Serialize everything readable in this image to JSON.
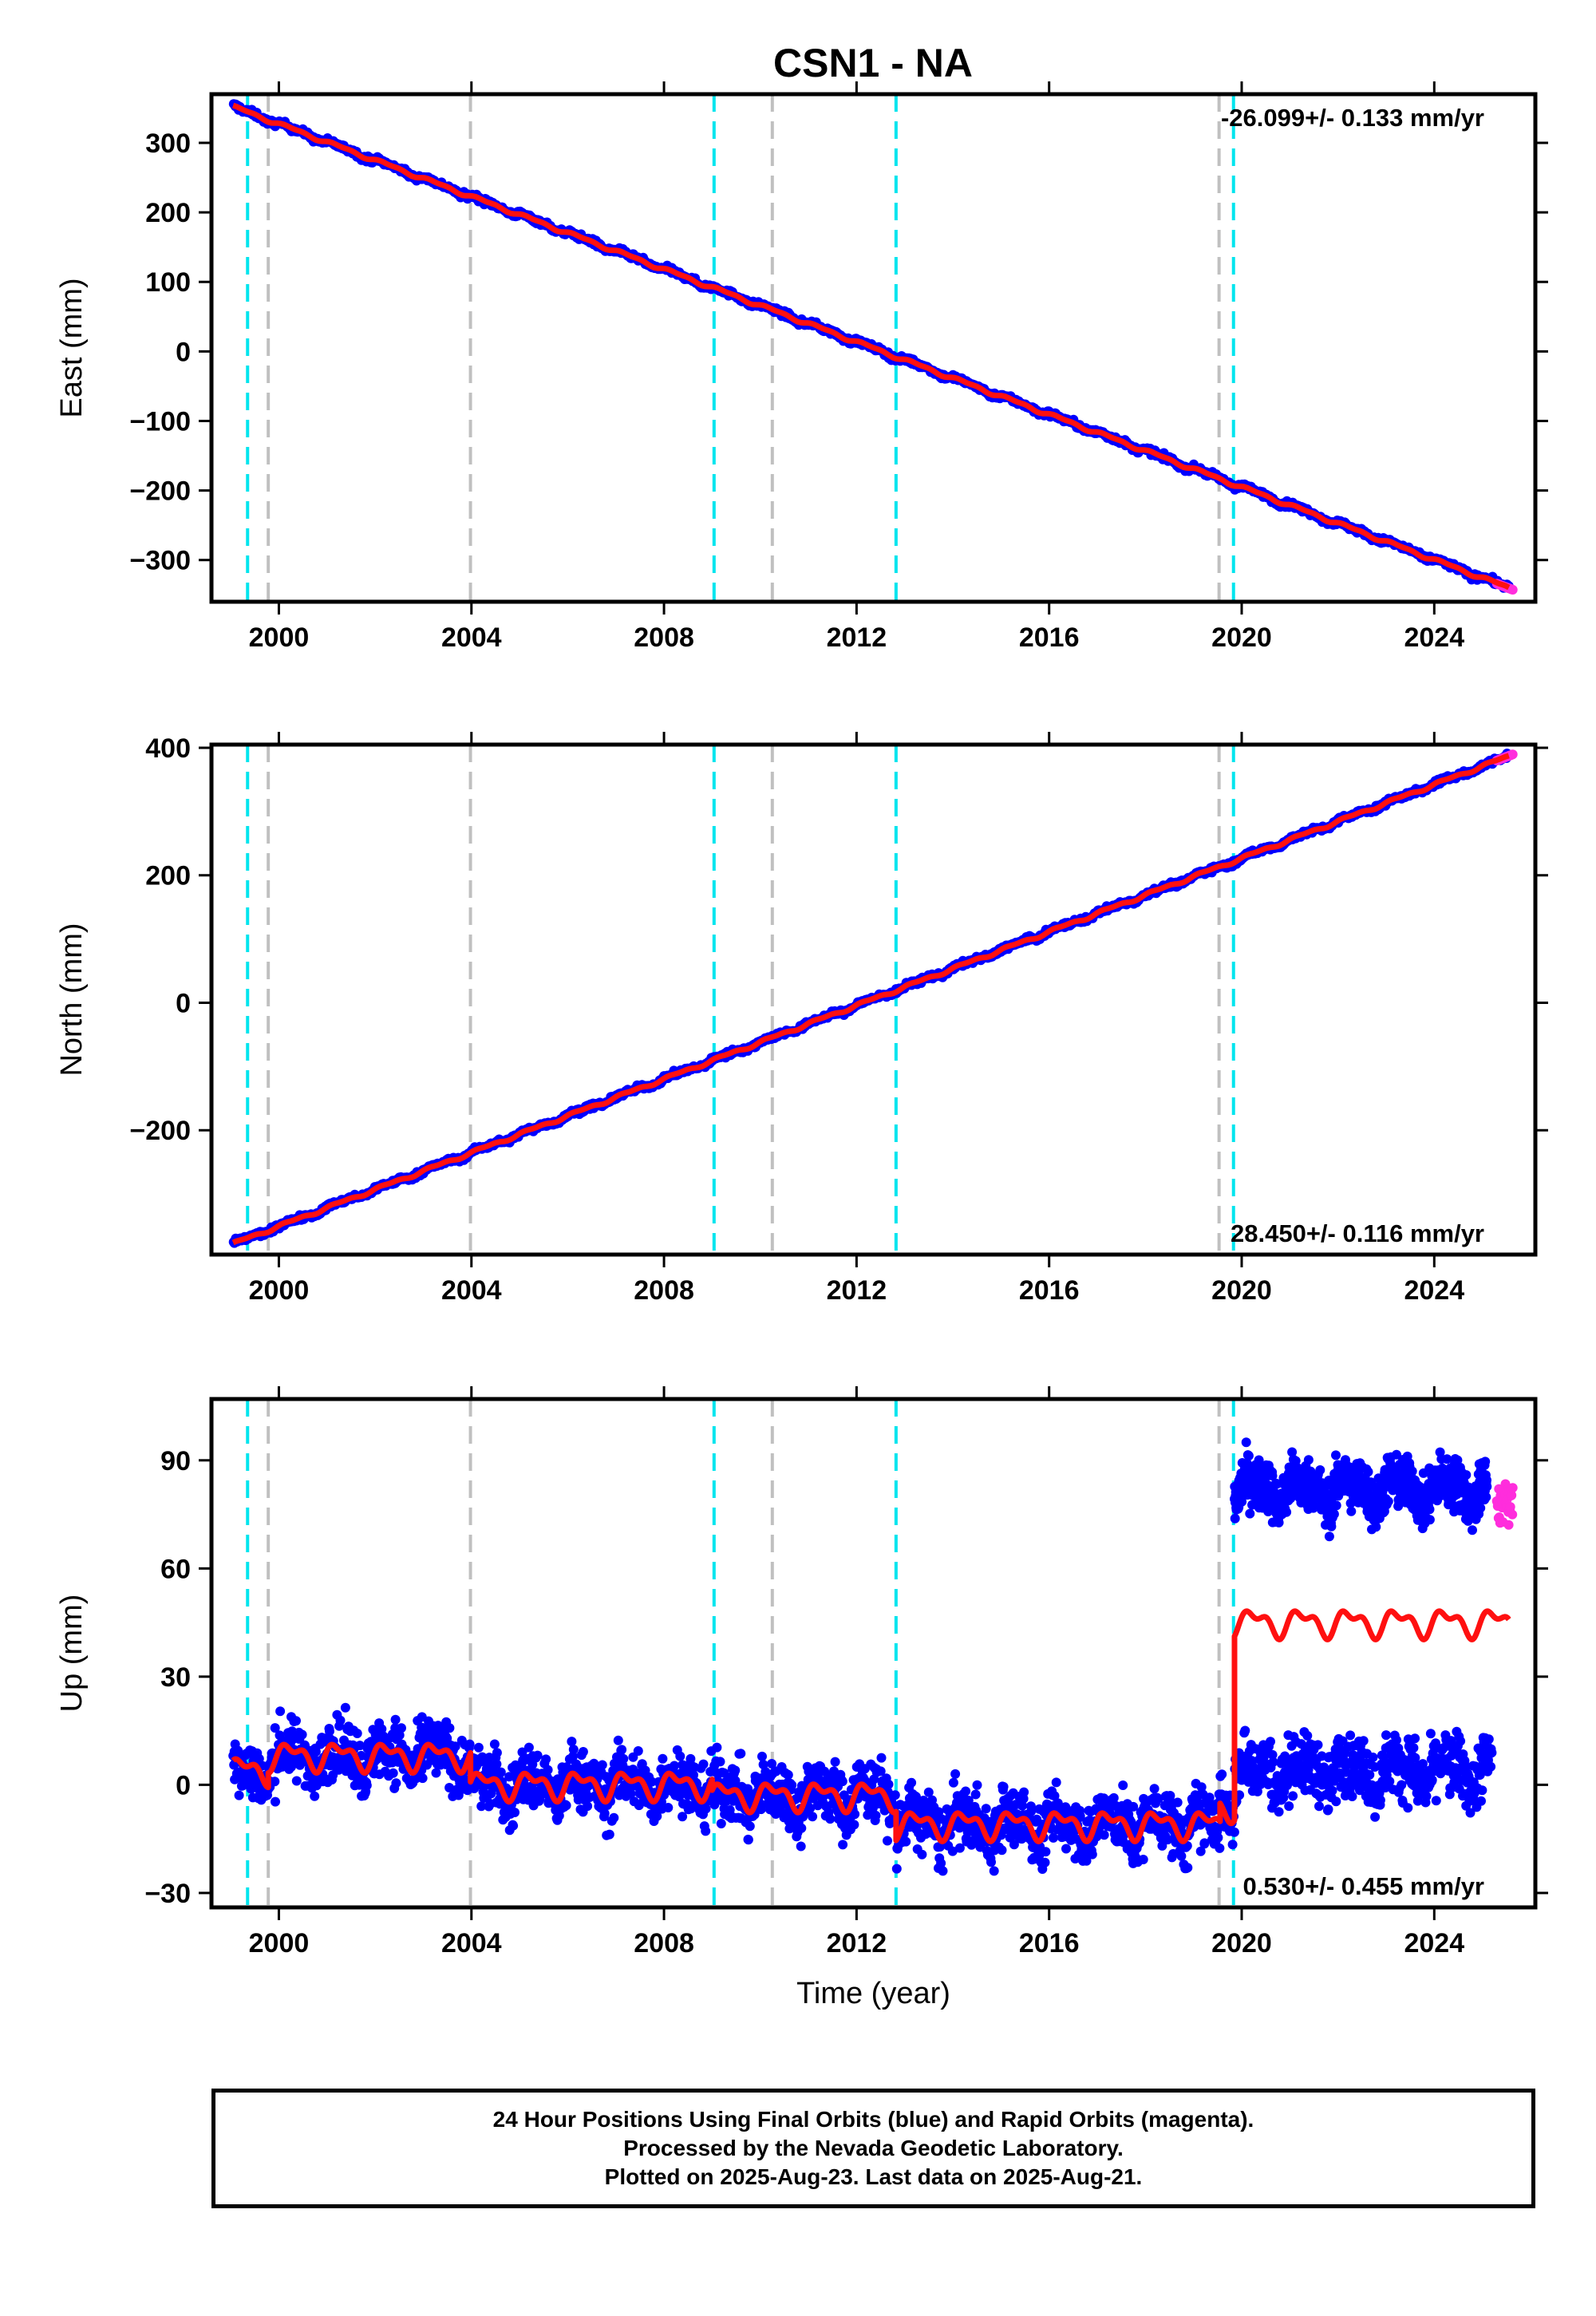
{
  "title": "CSN1 - NA",
  "colors": {
    "final_points": "#0000ff",
    "rapid_points": "#ff2ddc",
    "model": "#ff1010",
    "equipment_line": "#00e5ee",
    "event_line": "#c0c0c0"
  },
  "chart_data": [
    {
      "type": "scatter",
      "component": "East",
      "ylabel": "East (mm)",
      "ylim": [
        -360,
        370
      ],
      "yticks": [
        300,
        200,
        100,
        0,
        -100,
        -200,
        -300
      ],
      "xlim": [
        1998.6,
        2026.1
      ],
      "xticks": [
        2000,
        2004,
        2008,
        2012,
        2016,
        2020,
        2024
      ],
      "rate_label": "-26.099+/- 0.133 mm/yr",
      "rate_label_position": "top-right",
      "series": [
        {
          "kind": "final",
          "trend_points": [
            [
              1999.05,
              352
            ],
            [
              2025.55,
              -340
            ]
          ],
          "scatter_sd": 3
        },
        {
          "kind": "rapid",
          "x_range": [
            2025.3,
            2025.64
          ],
          "trend_points": [
            [
              2025.3,
              -334
            ],
            [
              2025.64,
              -343
            ]
          ]
        },
        {
          "kind": "model",
          "trend_points": [
            [
              1999.05,
              352
            ],
            [
              2025.55,
              -340
            ]
          ]
        }
      ]
    },
    {
      "type": "scatter",
      "component": "North",
      "ylabel": "North (mm)",
      "ylim": [
        -395,
        405
      ],
      "yticks": [
        400,
        200,
        0,
        -200
      ],
      "xlim": [
        1998.6,
        2026.1
      ],
      "xticks": [
        2000,
        2004,
        2008,
        2012,
        2016,
        2020,
        2024
      ],
      "rate_label": "28.450+/- 0.116 mm/yr",
      "rate_label_position": "bottom-right",
      "series": [
        {
          "kind": "final",
          "trend_points": [
            [
              1999.05,
              -378
            ],
            [
              2025.55,
              387
            ]
          ],
          "scatter_sd": 3
        },
        {
          "kind": "rapid",
          "x_range": [
            2025.3,
            2025.64
          ],
          "trend_points": [
            [
              2025.3,
              380
            ],
            [
              2025.64,
              390
            ]
          ]
        },
        {
          "kind": "model",
          "trend_points": [
            [
              1999.05,
              -378
            ],
            [
              2025.55,
              387
            ]
          ]
        }
      ]
    },
    {
      "type": "scatter",
      "component": "Up",
      "ylabel": "Up (mm)",
      "xlabel": "Time (year)",
      "ylim": [
        -34,
        107
      ],
      "yticks": [
        90,
        60,
        30,
        0,
        -30
      ],
      "xlim": [
        1998.6,
        2026.1
      ],
      "xticks": [
        2000,
        2004,
        2008,
        2012,
        2016,
        2020,
        2024
      ],
      "rate_label": "0.530+/- 0.455 mm/yr",
      "rate_label_position": "bottom-right",
      "series": [
        {
          "kind": "final",
          "segments": [
            {
              "x_range": [
                1999.05,
                1999.78
              ],
              "level": 3
            },
            {
              "x_range": [
                1999.78,
                2003.98
              ],
              "level": 8
            },
            {
              "x_range": [
                2003.98,
                2009.0
              ],
              "level": 0
            },
            {
              "x_range": [
                2009.0,
                2012.82
              ],
              "level": -3
            },
            {
              "x_range": [
                2012.82,
                2019.55
              ],
              "level": -11
            },
            {
              "x_range": [
                2019.55,
                2019.85
              ],
              "level": -5
            },
            {
              "x_range": [
                2019.85,
                2025.2
              ],
              "level": 4
            }
          ],
          "scatter_sd": 6
        },
        {
          "kind": "final_upper",
          "x_range": [
            2019.85,
            2025.1
          ],
          "level": 82,
          "scatter_sd": 5
        },
        {
          "kind": "rapid",
          "x_range": [
            2025.3,
            2025.64
          ],
          "level": 78,
          "scatter_sd": 4
        },
        {
          "kind": "model",
          "segments": [
            {
              "x_range": [
                1999.05,
                1999.78
              ],
              "level": 4
            },
            {
              "x_range": [
                1999.78,
                2003.98
              ],
              "level": 8
            },
            {
              "x_range": [
                2003.98,
                2009.0
              ],
              "level": 0
            },
            {
              "x_range": [
                2009.0,
                2012.82
              ],
              "level": -3
            },
            {
              "x_range": [
                2012.82,
                2019.55
              ],
              "level": -11
            },
            {
              "x_range": [
                2019.55,
                2019.85
              ],
              "level": -6
            },
            {
              "x_range": [
                2019.85,
                2025.55
              ],
              "level": 45
            }
          ],
          "seasonal_amplitude": 3
        }
      ]
    }
  ],
  "vertical_lines": [
    {
      "year": 1999.35,
      "kind": "equipment"
    },
    {
      "year": 1999.78,
      "kind": "event"
    },
    {
      "year": 2003.98,
      "kind": "event"
    },
    {
      "year": 2009.04,
      "kind": "equipment"
    },
    {
      "year": 2010.25,
      "kind": "event"
    },
    {
      "year": 2012.82,
      "kind": "equipment"
    },
    {
      "year": 2019.53,
      "kind": "event"
    },
    {
      "year": 2019.83,
      "kind": "equipment"
    }
  ],
  "footer": {
    "line1": "24 Hour Positions Using Final Orbits (blue) and Rapid Orbits (magenta).",
    "line2": "Processed by the Nevada Geodetic Laboratory.",
    "line3": "Plotted on 2025-Aug-23. Last data on 2025-Aug-21."
  }
}
